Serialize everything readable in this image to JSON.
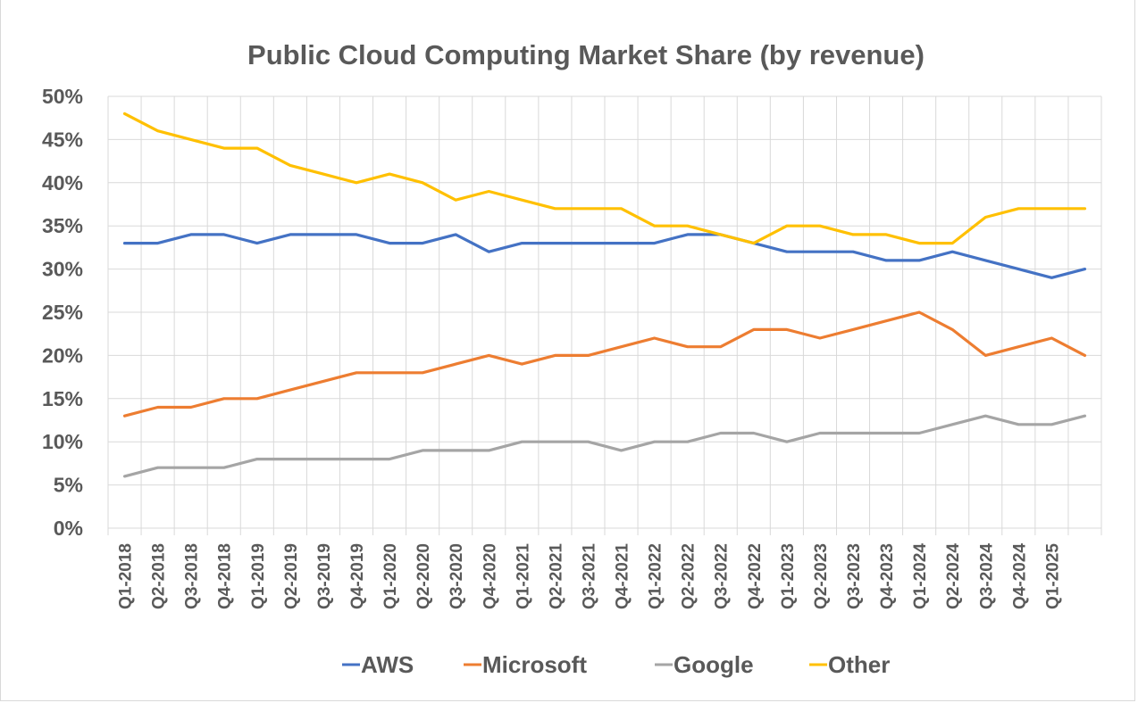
{
  "chart_data": {
    "type": "line",
    "title": "Public Cloud Computing Market Share (by revenue)",
    "xlabel": "",
    "ylabel": "",
    "ylim": [
      0,
      50
    ],
    "y_ticks": [
      0,
      5,
      10,
      15,
      20,
      25,
      30,
      35,
      40,
      45,
      50
    ],
    "y_tick_format": "percent",
    "grid": true,
    "legend_position": "bottom",
    "categories": [
      "Q1-2018",
      "Q2-2018",
      "Q3-2018",
      "Q4-2018",
      "Q1-2019",
      "Q2-2019",
      "Q3-2019",
      "Q4-2019",
      "Q1-2020",
      "Q2-2020",
      "Q3-2020",
      "Q4-2020",
      "Q1-2021",
      "Q2-2021",
      "Q3-2021",
      "Q4-2021",
      "Q1-2022",
      "Q2-2022",
      "Q3-2022",
      "Q4-2022",
      "Q1-2023",
      "Q2-2023",
      "Q3-2023",
      "Q4-2023",
      "Q1-2024",
      "Q2-2024",
      "Q3-2024",
      "Q4-2024",
      "Q1-2025",
      ""
    ],
    "series": [
      {
        "name": "AWS",
        "color": "#4472c4",
        "values": [
          33,
          33,
          34,
          34,
          33,
          34,
          34,
          34,
          33,
          33,
          34,
          32,
          33,
          33,
          33,
          33,
          33,
          34,
          34,
          33,
          32,
          32,
          32,
          31,
          31,
          32,
          31,
          30,
          29,
          30
        ]
      },
      {
        "name": "Microsoft",
        "color": "#ed7d31",
        "values": [
          13,
          14,
          14,
          15,
          15,
          16,
          17,
          18,
          18,
          18,
          19,
          20,
          19,
          20,
          20,
          21,
          22,
          21,
          21,
          23,
          23,
          22,
          23,
          24,
          25,
          23,
          20,
          21,
          22,
          20
        ]
      },
      {
        "name": "Google",
        "color": "#a5a5a5",
        "values": [
          6,
          7,
          7,
          7,
          8,
          8,
          8,
          8,
          8,
          9,
          9,
          9,
          10,
          10,
          10,
          9,
          10,
          10,
          11,
          11,
          10,
          11,
          11,
          11,
          11,
          12,
          13,
          12,
          12,
          13
        ]
      },
      {
        "name": "Other",
        "color": "#ffc000",
        "values": [
          48,
          46,
          45,
          44,
          44,
          42,
          41,
          40,
          41,
          40,
          38,
          39,
          38,
          37,
          37,
          37,
          35,
          35,
          34,
          33,
          35,
          35,
          34,
          34,
          33,
          33,
          36,
          37,
          37,
          37
        ]
      }
    ]
  }
}
